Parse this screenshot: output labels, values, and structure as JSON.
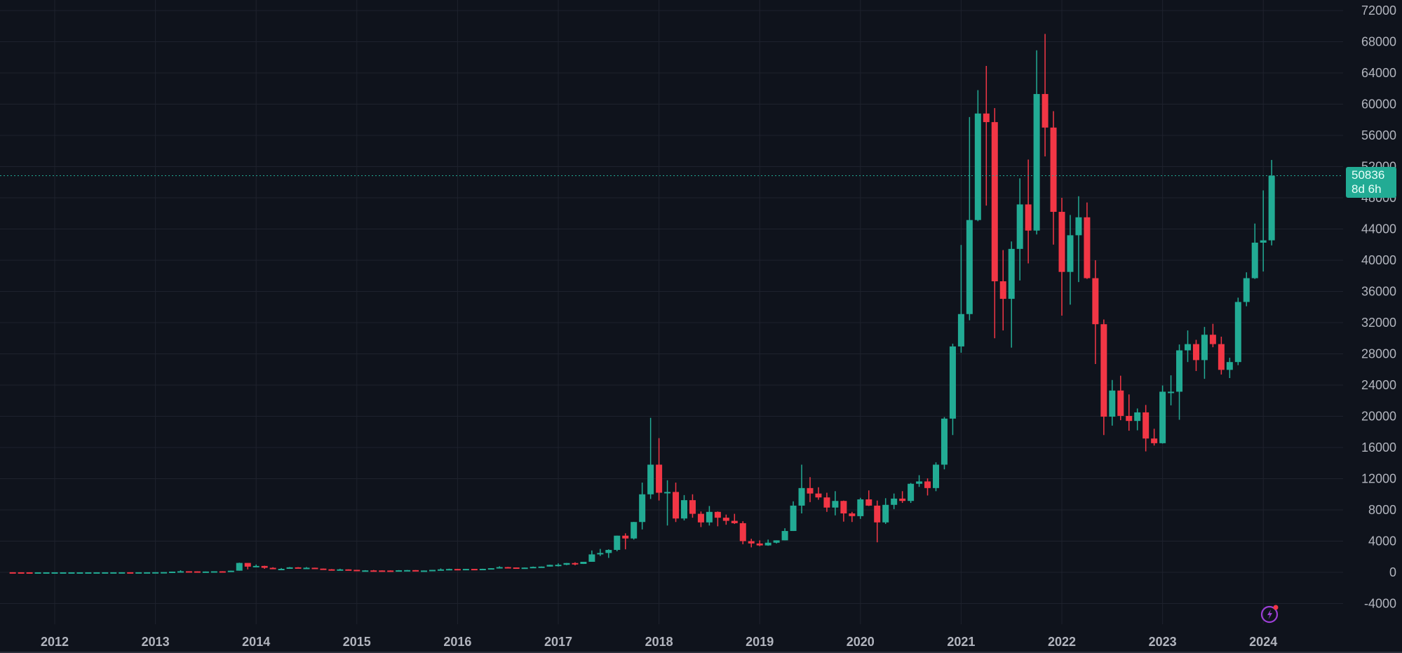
{
  "chart_data": {
    "type": "candlestick",
    "title": "",
    "interval": "1M",
    "xlabel": "",
    "ylabel": "",
    "ylim": [
      -6000,
      72000
    ],
    "y_ticks": [
      -4000,
      0,
      4000,
      8000,
      12000,
      16000,
      20000,
      24000,
      28000,
      32000,
      36000,
      40000,
      44000,
      48000,
      52000,
      56000,
      60000,
      64000,
      68000,
      72000
    ],
    "x_ticks": [
      "2012",
      "2013",
      "2014",
      "2015",
      "2016",
      "2017",
      "2018",
      "2019",
      "2020",
      "2021",
      "2022",
      "2023",
      "2024"
    ],
    "grid": true,
    "start_month": "2011-08",
    "colors": {
      "up": "#22ab94",
      "down": "#f23645",
      "background": "#0f131c",
      "grid": "#1e222d",
      "text": "#b2b5be"
    },
    "last_price": {
      "value": 50836,
      "label": "50836",
      "countdown": "8d 6h"
    },
    "ohlc": [
      [
        13,
        15,
        7,
        8
      ],
      [
        8,
        8,
        5,
        5
      ],
      [
        5,
        5,
        2,
        3
      ],
      [
        3,
        4,
        2,
        3
      ],
      [
        3,
        4,
        3,
        4
      ],
      [
        5,
        7,
        4,
        5
      ],
      [
        5,
        6,
        4,
        5
      ],
      [
        5,
        5,
        4,
        5
      ],
      [
        5,
        5,
        4,
        5
      ],
      [
        5,
        5,
        5,
        5
      ],
      [
        5,
        7,
        5,
        7
      ],
      [
        7,
        9,
        6,
        9
      ],
      [
        9,
        16,
        9,
        10
      ],
      [
        10,
        12,
        9,
        12
      ],
      [
        12,
        13,
        10,
        11
      ],
      [
        11,
        13,
        10,
        12
      ],
      [
        12,
        14,
        12,
        13
      ],
      [
        13,
        22,
        13,
        20
      ],
      [
        20,
        33,
        20,
        33
      ],
      [
        33,
        95,
        33,
        93
      ],
      [
        93,
        266,
        50,
        139
      ],
      [
        139,
        139,
        80,
        128
      ],
      [
        128,
        130,
        65,
        96
      ],
      [
        96,
        110,
        70,
        106
      ],
      [
        106,
        135,
        95,
        135
      ],
      [
        135,
        147,
        115,
        125
      ],
      [
        125,
        215,
        100,
        211
      ],
      [
        211,
        1240,
        209,
        1205
      ],
      [
        1205,
        1156,
        380,
        730
      ],
      [
        730,
        1000,
        720,
        820
      ],
      [
        820,
        850,
        450,
        580
      ],
      [
        580,
        650,
        430,
        450
      ],
      [
        450,
        550,
        350,
        450
      ],
      [
        450,
        680,
        450,
        640
      ],
      [
        640,
        670,
        560,
        590
      ],
      [
        590,
        680,
        560,
        590
      ],
      [
        590,
        600,
        460,
        480
      ],
      [
        480,
        490,
        330,
        390
      ],
      [
        390,
        420,
        280,
        340
      ],
      [
        340,
        460,
        320,
        380
      ],
      [
        380,
        380,
        300,
        320
      ],
      [
        320,
        320,
        160,
        220
      ],
      [
        220,
        280,
        220,
        250
      ],
      [
        250,
        300,
        230,
        240
      ],
      [
        240,
        250,
        215,
        235
      ],
      [
        235,
        250,
        220,
        230
      ],
      [
        230,
        290,
        230,
        264
      ],
      [
        264,
        300,
        270,
        285
      ],
      [
        285,
        290,
        230,
        230
      ],
      [
        230,
        245,
        230,
        236
      ],
      [
        236,
        320,
        235,
        315
      ],
      [
        315,
        500,
        300,
        380
      ],
      [
        380,
        470,
        350,
        430
      ],
      [
        430,
        440,
        350,
        370
      ],
      [
        370,
        440,
        370,
        440
      ],
      [
        440,
        420,
        410,
        415
      ],
      [
        415,
        460,
        410,
        450
      ],
      [
        450,
        540,
        440,
        530
      ],
      [
        530,
        780,
        520,
        670
      ],
      [
        670,
        700,
        600,
        625
      ],
      [
        625,
        620,
        550,
        575
      ],
      [
        575,
        620,
        590,
        610
      ],
      [
        610,
        740,
        610,
        700
      ],
      [
        700,
        750,
        690,
        740
      ],
      [
        740,
        980,
        740,
        960
      ],
      [
        960,
        1150,
        750,
        970
      ],
      [
        970,
        1200,
        920,
        1190
      ],
      [
        1190,
        1290,
        900,
        1080
      ],
      [
        1080,
        1350,
        1070,
        1350
      ],
      [
        1350,
        2800,
        1350,
        2300
      ],
      [
        2300,
        3000,
        2100,
        2480
      ],
      [
        2480,
        2950,
        1850,
        2875
      ],
      [
        2875,
        4700,
        2700,
        4700
      ],
      [
        4700,
        5000,
        2950,
        4340
      ],
      [
        4340,
        6470,
        4200,
        6450
      ],
      [
        6450,
        11500,
        5500,
        10000
      ],
      [
        10000,
        19800,
        9400,
        13800
      ],
      [
        13800,
        17200,
        9200,
        10200
      ],
      [
        10200,
        11800,
        6000,
        10300
      ],
      [
        10300,
        11500,
        6450,
        6900
      ],
      [
        6900,
        9900,
        6650,
        9250
      ],
      [
        9250,
        10000,
        7000,
        7500
      ],
      [
        7500,
        7800,
        5800,
        6400
      ],
      [
        6400,
        8500,
        6000,
        7750
      ],
      [
        7750,
        7800,
        5900,
        7000
      ],
      [
        7000,
        7400,
        6100,
        6600
      ],
      [
        6600,
        7500,
        6200,
        6300
      ],
      [
        6300,
        6550,
        3600,
        4000
      ],
      [
        4000,
        4300,
        3200,
        3700
      ],
      [
        3700,
        4100,
        3350,
        3450
      ],
      [
        3450,
        4200,
        3400,
        3800
      ],
      [
        3800,
        4100,
        3700,
        4100
      ],
      [
        4100,
        5650,
        4100,
        5300
      ],
      [
        5300,
        9100,
        5300,
        8550
      ],
      [
        8550,
        13800,
        7550,
        10800
      ],
      [
        10800,
        12200,
        9000,
        10100
      ],
      [
        10100,
        10900,
        9300,
        9600
      ],
      [
        9600,
        10200,
        7750,
        8300
      ],
      [
        8300,
        10400,
        7300,
        9150
      ],
      [
        9150,
        9200,
        6500,
        7550
      ],
      [
        7550,
        7750,
        6450,
        7200
      ],
      [
        7200,
        9550,
        6850,
        9350
      ],
      [
        9350,
        10500,
        8500,
        8550
      ],
      [
        8550,
        9200,
        3850,
        6400
      ],
      [
        6400,
        9500,
        6200,
        8650
      ],
      [
        8650,
        10100,
        8100,
        9450
      ],
      [
        9450,
        10400,
        8900,
        9150
      ],
      [
        9150,
        11450,
        8900,
        11350
      ],
      [
        11350,
        12450,
        10950,
        11650
      ],
      [
        11650,
        12050,
        9850,
        10800
      ],
      [
        10800,
        14100,
        10400,
        13800
      ],
      [
        13800,
        19900,
        13200,
        19700
      ],
      [
        19700,
        29300,
        17600,
        28950
      ],
      [
        28950,
        41950,
        28150,
        33100
      ],
      [
        33100,
        58350,
        32300,
        45150
      ],
      [
        45150,
        61800,
        45000,
        58800
      ],
      [
        58800,
        64900,
        47000,
        57700
      ],
      [
        57700,
        59500,
        30000,
        37300
      ],
      [
        37300,
        41300,
        31000,
        35050
      ],
      [
        35050,
        42400,
        28800,
        41450
      ],
      [
        41450,
        50500,
        37400,
        47150
      ],
      [
        47150,
        52900,
        39600,
        43800
      ],
      [
        43800,
        66900,
        43300,
        61300
      ],
      [
        61300,
        69000,
        53300,
        57000
      ],
      [
        57000,
        59100,
        42000,
        46200
      ],
      [
        46200,
        48000,
        32900,
        38500
      ],
      [
        38500,
        45800,
        34300,
        43200
      ],
      [
        43200,
        48200,
        37200,
        45500
      ],
      [
        45500,
        47400,
        37600,
        37700
      ],
      [
        37700,
        40000,
        26700,
        31800
      ],
      [
        31800,
        32400,
        17600,
        19950
      ],
      [
        19950,
        24650,
        18800,
        23300
      ],
      [
        23300,
        25200,
        19500,
        20050
      ],
      [
        20050,
        22800,
        18150,
        19400
      ],
      [
        19400,
        21000,
        18200,
        20500
      ],
      [
        20500,
        21450,
        15500,
        17150
      ],
      [
        17150,
        18400,
        16250,
        16550
      ],
      [
        16550,
        23950,
        16500,
        23150
      ],
      [
        23150,
        25250,
        21400,
        23150
      ],
      [
        23150,
        29200,
        19550,
        28450
      ],
      [
        28450,
        31000,
        26950,
        29250
      ],
      [
        29250,
        29800,
        25800,
        27200
      ],
      [
        27200,
        31450,
        24800,
        30450
      ],
      [
        30450,
        31850,
        28850,
        29250
      ],
      [
        29250,
        30200,
        25350,
        25950
      ],
      [
        25950,
        27500,
        24900,
        26950
      ],
      [
        26950,
        35200,
        26550,
        34650
      ],
      [
        34650,
        38450,
        34100,
        37700
      ],
      [
        37700,
        44700,
        37600,
        42250
      ],
      [
        42250,
        48950,
        38550,
        42550
      ],
      [
        42550,
        52850,
        41900,
        50836
      ]
    ]
  }
}
